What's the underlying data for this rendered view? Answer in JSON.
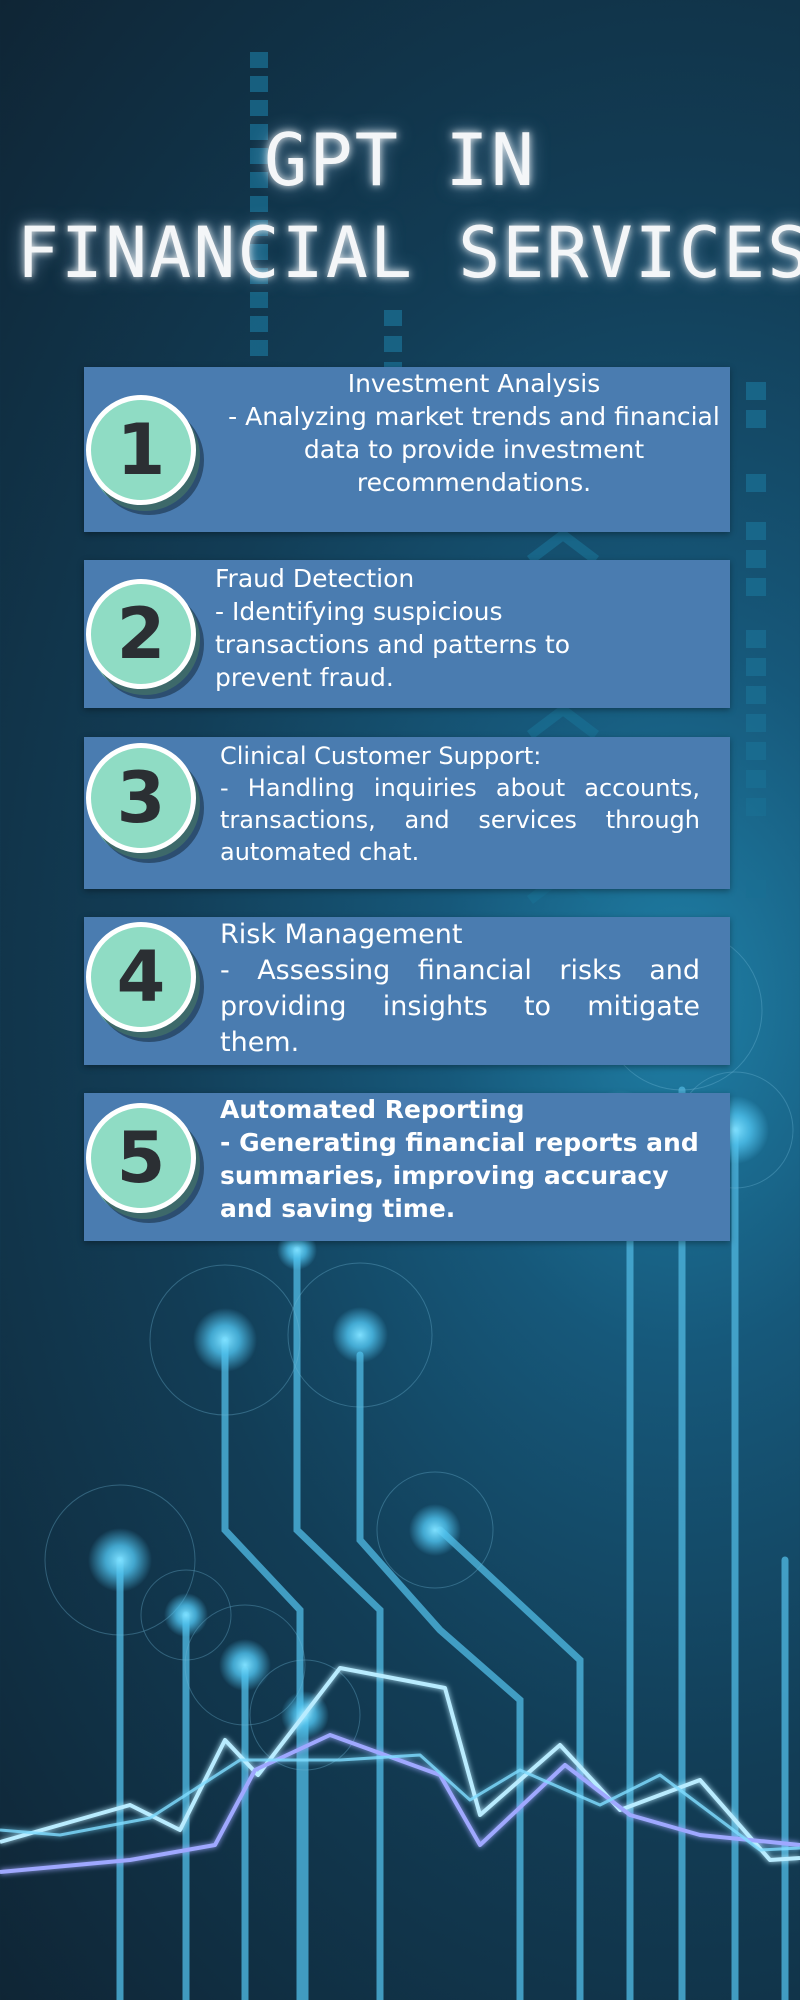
{
  "title": {
    "line1": "GPT IN",
    "line2": "FINANCIAL SERVICES"
  },
  "items": [
    {
      "number": "1",
      "heading": "Investment Analysis",
      "body": "- Analyzing market trends and financial data to provide investment recommendations."
    },
    {
      "number": "2",
      "heading": "Fraud Detection",
      "body": "- Identifying suspicious transactions and patterns to prevent fraud."
    },
    {
      "number": "3",
      "heading": "Clinical Customer Support:",
      "body": "- Handling inquiries about accounts, transactions, and services through automated chat."
    },
    {
      "number": "4",
      "heading": "Risk Management",
      "body": "- Assessing financial risks and providing insights to mitigate them."
    },
    {
      "number": "5",
      "heading": "Automated Reporting",
      "body": "- Generating financial reports and summaries, improving accuracy and saving time."
    }
  ],
  "colors": {
    "card": "#4a7cb0",
    "badge": "#8fdcc4",
    "glow": "#4fc3ef",
    "background": "#123d56"
  }
}
